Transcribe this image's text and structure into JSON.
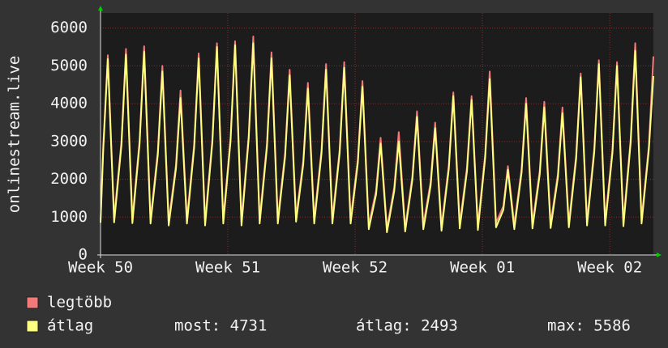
{
  "chart_data": {
    "type": "line",
    "y_label": "onlinestream.live",
    "x": [
      0,
      0.15,
      0.4,
      0.75,
      1.15,
      1.4,
      1.75,
      2.15,
      2.4,
      2.75,
      3.15,
      3.4,
      3.75,
      4.15,
      4.4,
      4.75,
      5.15,
      5.4,
      5.75,
      6.15,
      6.4,
      6.75,
      7.15,
      7.4,
      7.75,
      8.15,
      8.4,
      8.75,
      9.15,
      9.4,
      9.75,
      10.15,
      10.4,
      10.75,
      11.15,
      11.4,
      11.75,
      12.15,
      12.4,
      12.75,
      13.15,
      13.4,
      13.75,
      14.15,
      14.4,
      14.75,
      15.15,
      15.4,
      15.75,
      16.15,
      16.4,
      16.75,
      17.15,
      17.4,
      17.75,
      18.15,
      18.4,
      18.75,
      19.15,
      19.4,
      19.75,
      20.15,
      20.4,
      20.75,
      21.15,
      21.4,
      21.75,
      22.15,
      22.4,
      22.75,
      23.15,
      23.4,
      23.75,
      24.15,
      24.4,
      24.75,
      25.15,
      25.4,
      25.75,
      26.15,
      26.4,
      26.75,
      27.15,
      27.4,
      27.75,
      28.15,
      28.4,
      28.75,
      29.15,
      29.4,
      29.75,
      30.15,
      30.4
    ],
    "series": [
      {
        "name": "legtöbb",
        "color": "#f47a7a",
        "values": [
          900,
          2900,
          5280,
          980,
          3000,
          5450,
          960,
          3040,
          5520,
          950,
          2750,
          5000,
          900,
          2390,
          4350,
          950,
          2930,
          5330,
          900,
          3080,
          5600,
          950,
          3110,
          5650,
          900,
          3180,
          5780,
          950,
          2950,
          5360,
          950,
          2700,
          4900,
          1000,
          2500,
          4550,
          950,
          2780,
          5050,
          950,
          2800,
          5100,
          950,
          2530,
          4600,
          800,
          1700,
          3100,
          700,
          1790,
          3250,
          720,
          2090,
          3800,
          800,
          1930,
          3500,
          750,
          2370,
          4300,
          820,
          2310,
          4200,
          780,
          2670,
          4850,
          850,
          1290,
          2350,
          800,
          2280,
          4150,
          820,
          2230,
          4050,
          830,
          2150,
          3900,
          850,
          2640,
          4800,
          900,
          2830,
          5150,
          900,
          2800,
          5100,
          880,
          3080,
          5600,
          950,
          2890,
          5250
        ]
      },
      {
        "name": "átlag",
        "color": "#ffff80",
        "values": [
          850,
          2800,
          5180,
          860,
          2900,
          5300,
          840,
          2940,
          5380,
          830,
          2650,
          4850,
          780,
          2290,
          4150,
          830,
          2830,
          5200,
          780,
          2980,
          5500,
          830,
          3010,
          5550,
          780,
          3080,
          5600,
          830,
          2850,
          5200,
          830,
          2600,
          4750,
          880,
          2400,
          4400,
          830,
          2680,
          4900,
          830,
          2700,
          4950,
          830,
          2430,
          4450,
          680,
          1600,
          2950,
          600,
          1690,
          3000,
          620,
          1990,
          3650,
          680,
          1830,
          3350,
          640,
          2270,
          4200,
          700,
          2210,
          4100,
          660,
          2570,
          4650,
          730,
          1190,
          2250,
          680,
          2180,
          4000,
          700,
          2130,
          3900,
          710,
          2050,
          3750,
          730,
          2540,
          4700,
          780,
          2730,
          5050,
          780,
          2700,
          5000,
          760,
          2980,
          5400,
          830,
          2790,
          4731
        ]
      }
    ],
    "stats": [
      "most: 4731",
      "átlag: 2493",
      "max: 5586"
    ],
    "xlim": [
      0,
      30.4
    ],
    "xticks": [
      {
        "value": 0,
        "label": "Week 50"
      },
      {
        "value": 7,
        "label": "Week 51"
      },
      {
        "value": 14,
        "label": "Week 52"
      },
      {
        "value": 21,
        "label": "Week 01"
      },
      {
        "value": 28,
        "label": "Week 02"
      }
    ],
    "ylim": [
      0,
      6400
    ],
    "yticks": [
      0,
      1000,
      2000,
      3000,
      4000,
      5000,
      6000
    ],
    "grid": true
  }
}
